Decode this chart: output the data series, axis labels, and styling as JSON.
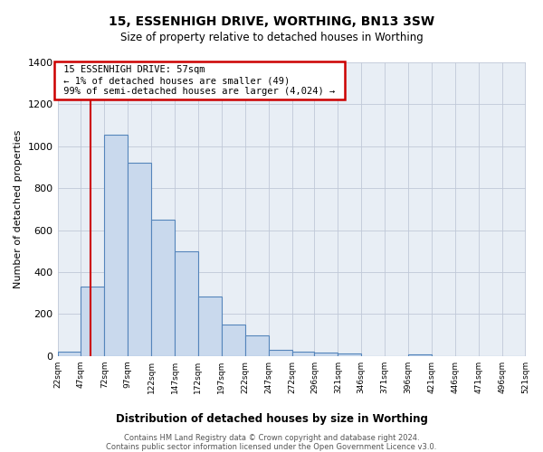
{
  "title": "15, ESSENHIGH DRIVE, WORTHING, BN13 3SW",
  "subtitle": "Size of property relative to detached houses in Worthing",
  "xlabel": "Distribution of detached houses by size in Worthing",
  "ylabel": "Number of detached properties",
  "bar_edges": [
    22,
    47,
    72,
    97,
    122,
    147,
    172,
    197,
    222,
    247,
    272,
    296,
    321,
    346,
    371,
    396,
    421,
    446,
    471,
    496,
    521
  ],
  "bar_heights": [
    20,
    330,
    1055,
    920,
    650,
    500,
    285,
    150,
    100,
    30,
    20,
    15,
    10,
    0,
    0,
    8,
    0,
    0,
    0,
    0
  ],
  "bar_color": "#c9d9ed",
  "bar_edge_color": "#5585bb",
  "property_line_x": 57,
  "property_line_color": "#cc0000",
  "annotation_box_color": "#cc0000",
  "annotation_text_line1": "15 ESSENHIGH DRIVE: 57sqm",
  "annotation_text_line2": "← 1% of detached houses are smaller (49)",
  "annotation_text_line3": "99% of semi-detached houses are larger (4,024) →",
  "ylim": [
    0,
    1400
  ],
  "yticks": [
    0,
    200,
    400,
    600,
    800,
    1000,
    1200,
    1400
  ],
  "grid_color": "#c0c8d8",
  "background_color": "#e8eef5",
  "footnote1": "Contains HM Land Registry data © Crown copyright and database right 2024.",
  "footnote2": "Contains public sector information licensed under the Open Government Licence v3.0."
}
